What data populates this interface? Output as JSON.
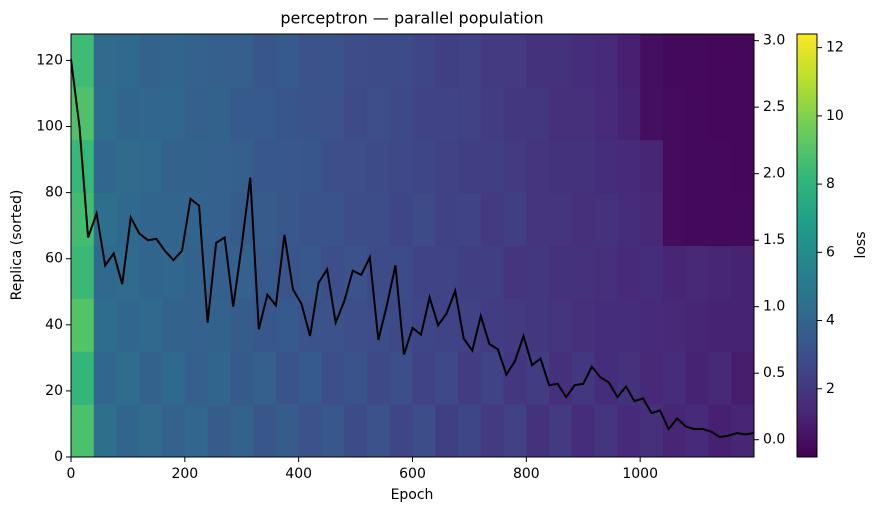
{
  "chart_data": {
    "type": "heatmap",
    "title": "perceptron — parallel population",
    "xlabel": "Epoch",
    "ylabel": "Replica (sorted)",
    "colorbar_label": "loss",
    "colormap": "viridis",
    "xlim": [
      0,
      1200
    ],
    "xticks": [
      0,
      200,
      400,
      600,
      800,
      1000
    ],
    "ylim": [
      0,
      128
    ],
    "yticks": [
      0,
      20,
      40,
      60,
      80,
      100,
      120
    ],
    "y2lim": [
      -0.13,
      3.05
    ],
    "y2ticks": [
      {
        "value": 0,
        "label": "0.0"
      },
      0.5,
      {
        "value": 1,
        "label": "1.0"
      },
      1.5,
      {
        "value": 2,
        "label": "2.0"
      },
      2.5,
      {
        "value": 3,
        "label": "3.0"
      }
    ],
    "clim": [
      0,
      12.4
    ],
    "cticks": [
      2,
      4,
      6,
      8,
      10,
      12
    ],
    "xbins": [
      0,
      40,
      80,
      120,
      160,
      200,
      240,
      280,
      320,
      360,
      400,
      440,
      480,
      520,
      560,
      600,
      640,
      680,
      720,
      760,
      800,
      840,
      880,
      920,
      960,
      1000,
      1040,
      1080,
      1120,
      1160,
      1200
    ],
    "ybins": [
      0,
      16,
      32,
      48,
      64,
      80,
      96,
      112,
      128
    ],
    "z": [
      [
        8.8,
        4.5,
        4.0,
        4.3,
        3.8,
        4.1,
        3.6,
        3.9,
        3.3,
        3.6,
        3.1,
        3.4,
        2.8,
        3.1,
        2.6,
        2.9,
        2.3,
        2.6,
        2.1,
        2.4,
        1.8,
        2.1,
        1.6,
        1.9,
        1.5,
        1.7,
        1.3,
        1.5,
        1.1,
        1.3
      ],
      [
        8.2,
        4.1,
        4.4,
        3.9,
        4.2,
        3.7,
        4.0,
        3.5,
        3.7,
        3.2,
        3.5,
        3.0,
        3.2,
        2.7,
        3.0,
        2.5,
        2.7,
        2.2,
        2.5,
        2.0,
        2.2,
        1.7,
        2.0,
        1.6,
        1.8,
        1.4,
        1.6,
        1.2,
        1.4,
        1.0
      ],
      [
        9.0,
        4.4,
        4.1,
        4.2,
        3.9,
        3.8,
        3.9,
        3.6,
        3.4,
        3.5,
        3.2,
        3.1,
        3.0,
        2.9,
        2.7,
        2.6,
        2.5,
        2.4,
        2.2,
        2.1,
        2.0,
        1.9,
        1.7,
        1.6,
        1.6,
        1.5,
        1.4,
        1.3,
        1.2,
        1.2
      ],
      [
        8.4,
        4.2,
        4.3,
        4.0,
        4.1,
        3.9,
        3.7,
        3.8,
        3.5,
        3.3,
        3.4,
        3.0,
        3.1,
        2.8,
        2.8,
        2.5,
        2.5,
        2.3,
        2.3,
        1.9,
        2.0,
        1.8,
        1.8,
        1.7,
        1.5,
        1.6,
        1.3,
        1.4,
        1.3,
        1.2
      ],
      [
        8.6,
        4.5,
        4.2,
        4.0,
        4.0,
        4.0,
        3.8,
        3.6,
        3.6,
        3.4,
        3.2,
        3.2,
        2.9,
        2.9,
        2.6,
        2.8,
        2.4,
        2.5,
        2.1,
        2.3,
        1.9,
        1.9,
        1.7,
        1.8,
        1.6,
        1.4,
        0.4,
        0.3,
        0.3,
        0.3
      ],
      [
        8.3,
        4.1,
        4.3,
        4.2,
        3.8,
        3.9,
        3.8,
        3.7,
        3.4,
        3.4,
        3.3,
        3.0,
        3.0,
        2.8,
        2.7,
        2.6,
        2.4,
        2.3,
        2.3,
        2.1,
        1.9,
        1.8,
        1.8,
        1.6,
        1.5,
        1.3,
        0.4,
        0.3,
        0.3,
        0.2
      ],
      [
        8.9,
        4.4,
        4.0,
        4.1,
        4.1,
        3.7,
        3.9,
        3.5,
        3.5,
        3.3,
        3.2,
        3.1,
        2.8,
        3.0,
        2.7,
        2.5,
        2.5,
        2.4,
        2.2,
        2.0,
        2.0,
        1.7,
        1.7,
        1.5,
        1.2,
        0.5,
        0.4,
        0.3,
        0.2,
        0.2
      ],
      [
        8.5,
        4.3,
        4.2,
        3.9,
        4.0,
        3.8,
        3.7,
        3.7,
        3.3,
        3.5,
        3.1,
        3.2,
        2.9,
        2.8,
        2.8,
        2.6,
        2.3,
        2.4,
        2.1,
        2.1,
        1.8,
        1.8,
        1.6,
        1.5,
        1.1,
        0.5,
        0.3,
        0.3,
        0.2,
        0.2
      ]
    ],
    "line": {
      "color": "#000000",
      "axis": "y2",
      "x": [
        0,
        15,
        30,
        45,
        60,
        75,
        90,
        105,
        120,
        135,
        150,
        165,
        180,
        195,
        210,
        225,
        240,
        255,
        270,
        285,
        300,
        315,
        330,
        345,
        360,
        375,
        390,
        405,
        420,
        435,
        450,
        465,
        480,
        495,
        510,
        525,
        540,
        555,
        570,
        585,
        600,
        615,
        630,
        645,
        660,
        675,
        690,
        705,
        720,
        735,
        750,
        765,
        780,
        795,
        810,
        825,
        840,
        855,
        870,
        885,
        900,
        915,
        930,
        945,
        960,
        975,
        990,
        1005,
        1020,
        1035,
        1050,
        1065,
        1080,
        1095,
        1110,
        1125,
        1140,
        1155,
        1170,
        1185,
        1200
      ],
      "values": [
        2.86,
        2.35,
        1.52,
        1.7,
        1.31,
        1.4,
        1.17,
        1.67,
        1.55,
        1.5,
        1.51,
        1.42,
        1.35,
        1.42,
        1.81,
        1.76,
        0.88,
        1.48,
        1.52,
        1.0,
        1.46,
        1.97,
        0.83,
        1.09,
        1.01,
        1.54,
        1.13,
        1.02,
        0.78,
        1.18,
        1.28,
        0.88,
        1.04,
        1.27,
        1.24,
        1.37,
        0.75,
        1.01,
        1.31,
        0.64,
        0.84,
        0.79,
        1.07,
        0.86,
        0.95,
        1.12,
        0.76,
        0.67,
        0.93,
        0.72,
        0.68,
        0.49,
        0.59,
        0.78,
        0.56,
        0.61,
        0.41,
        0.42,
        0.32,
        0.41,
        0.42,
        0.55,
        0.47,
        0.43,
        0.32,
        0.4,
        0.29,
        0.31,
        0.2,
        0.22,
        0.08,
        0.16,
        0.1,
        0.08,
        0.08,
        0.06,
        0.02,
        0.03,
        0.05,
        0.04,
        0.05
      ]
    }
  }
}
